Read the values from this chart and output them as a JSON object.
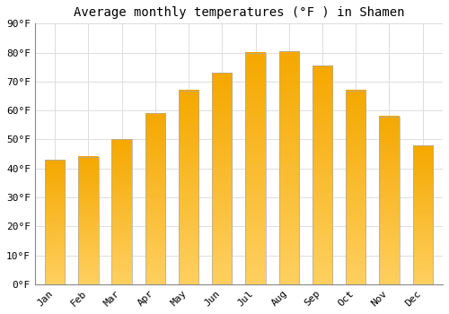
{
  "title": "Average monthly temperatures (°F ) in Shamen",
  "months": [
    "Jan",
    "Feb",
    "Mar",
    "Apr",
    "May",
    "Jun",
    "Jul",
    "Aug",
    "Sep",
    "Oct",
    "Nov",
    "Dec"
  ],
  "values": [
    43,
    44,
    50,
    59,
    67,
    73,
    80,
    80.5,
    75.5,
    67,
    58,
    48
  ],
  "bar_color_top": "#F5A800",
  "bar_color_bottom": "#FFD060",
  "bar_edge_color": "#AAAAAA",
  "ylim": [
    0,
    90
  ],
  "yticks": [
    0,
    10,
    20,
    30,
    40,
    50,
    60,
    70,
    80,
    90
  ],
  "ytick_labels": [
    "0°F",
    "10°F",
    "20°F",
    "30°F",
    "40°F",
    "50°F",
    "60°F",
    "70°F",
    "80°F",
    "90°F"
  ],
  "background_color": "#FFFFFF",
  "grid_color": "#DDDDDD",
  "title_fontsize": 10,
  "tick_fontsize": 8,
  "figsize": [
    5.0,
    3.5
  ],
  "dpi": 100
}
